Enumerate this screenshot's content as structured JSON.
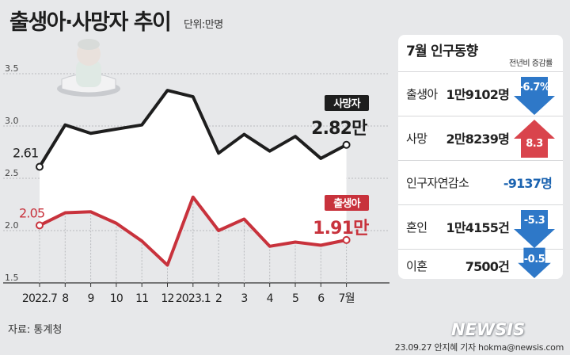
{
  "header": {
    "title": "출생아·사망자 추이",
    "unit": "단위:만명"
  },
  "chart_data": {
    "type": "line",
    "title": "출생아·사망자 추이",
    "unit": "단위:만명",
    "categories": [
      "2022.7",
      "8",
      "9",
      "10",
      "11",
      "12",
      "2023.1",
      "2",
      "3",
      "4",
      "5",
      "6",
      "7월"
    ],
    "series": [
      {
        "name": "사망자",
        "color": "#1e1e1e",
        "values": [
          2.61,
          3.01,
          2.93,
          2.97,
          3.01,
          3.34,
          3.28,
          2.74,
          2.92,
          2.76,
          2.9,
          2.69,
          2.82
        ],
        "first_label": "2.61",
        "last_label": "2.82만"
      },
      {
        "name": "출생아",
        "color": "#c8323c",
        "values": [
          2.05,
          2.17,
          2.18,
          2.07,
          1.9,
          1.67,
          2.32,
          2.0,
          2.11,
          1.85,
          1.89,
          1.86,
          1.91
        ],
        "first_label": "2.05",
        "last_label": "1.91만"
      }
    ],
    "y_ticks": [
      "3.5",
      "3.0",
      "2.5",
      "2.0",
      "1.5"
    ],
    "ylim": [
      1.5,
      3.5
    ],
    "grid": "horizontal",
    "legend": "inline-labels"
  },
  "panel": {
    "title": "7월 인구동향",
    "subtitle": "전년비 증감률",
    "rows": [
      {
        "label": "출생아",
        "value": "1만9102명",
        "change": "-6.7%",
        "direction": "down"
      },
      {
        "label": "사망",
        "value": "2만8239명",
        "change": "8.3",
        "direction": "up"
      },
      {
        "label": "인구자연감소",
        "value": "-9137명",
        "change": "",
        "direction": "none"
      },
      {
        "label": "혼인",
        "value": "1만4155건",
        "change": "-5.3",
        "direction": "down"
      },
      {
        "label": "이혼",
        "value": "7500건",
        "change": "-0.5",
        "direction": "down"
      }
    ],
    "colors": {
      "down": "#2e78c8",
      "up": "#d9444c",
      "negative_value": "#1b63b0"
    }
  },
  "footer": {
    "source": "자료: 통계청",
    "credit": "23.09.27 안지혜 기자  hokma@newsis.com",
    "logo": "NEWSIS"
  }
}
